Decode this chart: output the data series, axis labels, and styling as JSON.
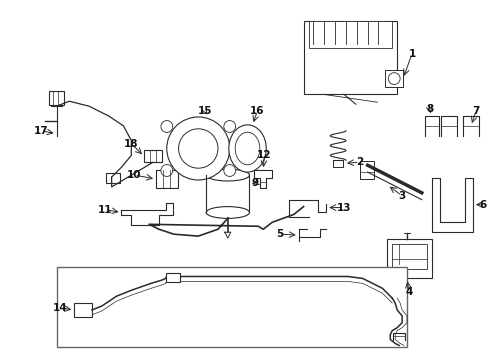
{
  "bg_color": "#ffffff",
  "line_color": "#2a2a2a",
  "label_color": "#111111",
  "fig_width": 4.89,
  "fig_height": 3.6,
  "dpi": 100
}
